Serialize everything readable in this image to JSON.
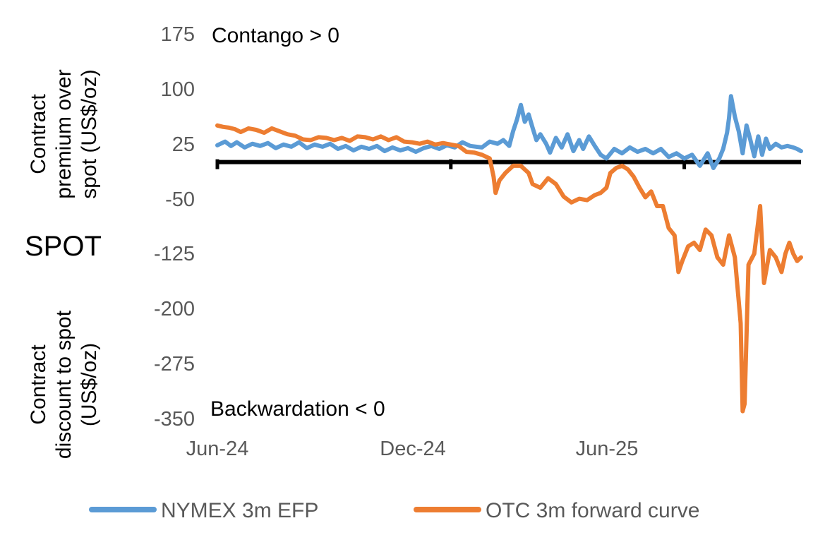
{
  "chart_data": {
    "type": "line",
    "title": "",
    "xlabel": "",
    "ylabel_upper": [
      "Contract",
      "premium over",
      "spot (US$/oz)"
    ],
    "ylabel_lower": [
      "Contract",
      "discount to spot",
      "(US$/oz)"
    ],
    "spot_label": "SPOT",
    "annotation_top": "Contango > 0",
    "annotation_bottom": "Backwardation < 0",
    "ylim": [
      -350,
      175
    ],
    "y_ticks": [
      175,
      100,
      25,
      -50,
      -125,
      -200,
      -275,
      -350
    ],
    "y_tick_labels": [
      "175",
      "100",
      "25",
      "-50",
      "-125",
      "-200",
      "-275",
      "-350"
    ],
    "x_range": [
      0,
      15
    ],
    "x_ticks": [
      0,
      6,
      12
    ],
    "x_tick_labels": [
      "Jun-24",
      "Dec-24",
      "Jun-25"
    ],
    "x_unit": "months since Jun-24",
    "grid": false,
    "legend_position": "bottom",
    "colors": {
      "nymex": "#5B9BD5",
      "otc": "#ED7D31",
      "axis": "#000000"
    },
    "series": [
      {
        "name": "NYMEX 3m EFP",
        "color": "#5B9BD5",
        "points": [
          [
            0,
            23
          ],
          [
            0.2,
            28
          ],
          [
            0.35,
            22
          ],
          [
            0.5,
            27
          ],
          [
            0.7,
            20
          ],
          [
            0.9,
            25
          ],
          [
            1.1,
            22
          ],
          [
            1.3,
            26
          ],
          [
            1.5,
            19
          ],
          [
            1.7,
            24
          ],
          [
            1.9,
            21
          ],
          [
            2.1,
            27
          ],
          [
            2.3,
            19
          ],
          [
            2.5,
            24
          ],
          [
            2.7,
            21
          ],
          [
            2.9,
            25
          ],
          [
            3.1,
            18
          ],
          [
            3.3,
            22
          ],
          [
            3.5,
            16
          ],
          [
            3.7,
            21
          ],
          [
            3.9,
            18
          ],
          [
            4.1,
            22
          ],
          [
            4.3,
            15
          ],
          [
            4.5,
            20
          ],
          [
            4.7,
            16
          ],
          [
            4.9,
            19
          ],
          [
            5.1,
            14
          ],
          [
            5.3,
            19
          ],
          [
            5.5,
            22
          ],
          [
            5.7,
            18
          ],
          [
            5.9,
            23
          ],
          [
            6.1,
            20
          ],
          [
            6.3,
            27
          ],
          [
            6.5,
            22
          ],
          [
            6.8,
            20
          ],
          [
            7.0,
            28
          ],
          [
            7.2,
            25
          ],
          [
            7.35,
            30
          ],
          [
            7.5,
            22
          ],
          [
            7.6,
            42
          ],
          [
            7.7,
            58
          ],
          [
            7.8,
            78
          ],
          [
            7.9,
            55
          ],
          [
            8.0,
            65
          ],
          [
            8.1,
            47
          ],
          [
            8.2,
            30
          ],
          [
            8.3,
            38
          ],
          [
            8.45,
            25
          ],
          [
            8.55,
            13
          ],
          [
            8.7,
            33
          ],
          [
            8.85,
            20
          ],
          [
            9.0,
            38
          ],
          [
            9.15,
            15
          ],
          [
            9.3,
            30
          ],
          [
            9.4,
            18
          ],
          [
            9.55,
            35
          ],
          [
            9.7,
            22
          ],
          [
            9.85,
            10
          ],
          [
            10.0,
            5
          ],
          [
            10.2,
            18
          ],
          [
            10.4,
            12
          ],
          [
            10.6,
            20
          ],
          [
            10.8,
            14
          ],
          [
            11.0,
            18
          ],
          [
            11.2,
            12
          ],
          [
            11.4,
            18
          ],
          [
            11.6,
            7
          ],
          [
            11.8,
            12
          ],
          [
            12.0,
            5
          ],
          [
            12.2,
            10
          ],
          [
            12.4,
            -5
          ],
          [
            12.6,
            12
          ],
          [
            12.75,
            -8
          ],
          [
            12.9,
            5
          ],
          [
            13.0,
            18
          ],
          [
            13.1,
            40
          ],
          [
            13.15,
            60
          ],
          [
            13.2,
            90
          ],
          [
            13.3,
            62
          ],
          [
            13.4,
            42
          ],
          [
            13.5,
            12
          ],
          [
            13.6,
            50
          ],
          [
            13.7,
            30
          ],
          [
            13.8,
            8
          ],
          [
            13.9,
            35
          ],
          [
            14.0,
            10
          ],
          [
            14.1,
            32
          ],
          [
            14.2,
            18
          ],
          [
            14.35,
            25
          ],
          [
            14.5,
            20
          ],
          [
            14.65,
            22
          ],
          [
            14.8,
            20
          ],
          [
            14.9,
            18
          ],
          [
            15.0,
            15
          ]
        ]
      },
      {
        "name": "OTC 3m forward curve",
        "color": "#ED7D31",
        "points": [
          [
            0,
            50
          ],
          [
            0.15,
            48
          ],
          [
            0.3,
            47
          ],
          [
            0.45,
            45
          ],
          [
            0.6,
            41
          ],
          [
            0.8,
            46
          ],
          [
            1.0,
            44
          ],
          [
            1.2,
            40
          ],
          [
            1.4,
            46
          ],
          [
            1.6,
            42
          ],
          [
            1.8,
            38
          ],
          [
            2.0,
            36
          ],
          [
            2.2,
            31
          ],
          [
            2.4,
            30
          ],
          [
            2.6,
            34
          ],
          [
            2.8,
            33
          ],
          [
            3.0,
            30
          ],
          [
            3.2,
            33
          ],
          [
            3.4,
            29
          ],
          [
            3.6,
            35
          ],
          [
            3.8,
            34
          ],
          [
            4.0,
            31
          ],
          [
            4.2,
            35
          ],
          [
            4.4,
            30
          ],
          [
            4.6,
            34
          ],
          [
            4.8,
            28
          ],
          [
            5.0,
            27
          ],
          [
            5.2,
            25
          ],
          [
            5.4,
            28
          ],
          [
            5.6,
            24
          ],
          [
            5.8,
            26
          ],
          [
            6.0,
            24
          ],
          [
            6.2,
            22
          ],
          [
            6.4,
            14
          ],
          [
            6.6,
            13
          ],
          [
            6.8,
            10
          ],
          [
            7.0,
            5
          ],
          [
            7.1,
            -20
          ],
          [
            7.15,
            -42
          ],
          [
            7.25,
            -25
          ],
          [
            7.4,
            -15
          ],
          [
            7.6,
            -5
          ],
          [
            7.8,
            -5
          ],
          [
            8.0,
            -15
          ],
          [
            8.1,
            -30
          ],
          [
            8.3,
            -35
          ],
          [
            8.5,
            -22
          ],
          [
            8.7,
            -30
          ],
          [
            8.9,
            -47
          ],
          [
            9.1,
            -55
          ],
          [
            9.3,
            -50
          ],
          [
            9.5,
            -52
          ],
          [
            9.7,
            -45
          ],
          [
            9.85,
            -42
          ],
          [
            10.0,
            -35
          ],
          [
            10.1,
            -15
          ],
          [
            10.25,
            -8
          ],
          [
            10.4,
            -5
          ],
          [
            10.55,
            -10
          ],
          [
            10.7,
            -20
          ],
          [
            10.85,
            -35
          ],
          [
            11.0,
            -48
          ],
          [
            11.15,
            -40
          ],
          [
            11.3,
            -60
          ],
          [
            11.45,
            -60
          ],
          [
            11.6,
            -90
          ],
          [
            11.75,
            -100
          ],
          [
            11.85,
            -150
          ],
          [
            11.95,
            -135
          ],
          [
            12.1,
            -115
          ],
          [
            12.25,
            -110
          ],
          [
            12.4,
            -120
          ],
          [
            12.55,
            -92
          ],
          [
            12.7,
            -100
          ],
          [
            12.85,
            -130
          ],
          [
            13.0,
            -140
          ],
          [
            13.15,
            -100
          ],
          [
            13.3,
            -130
          ],
          [
            13.45,
            -220
          ],
          [
            13.5,
            -340
          ],
          [
            13.55,
            -330
          ],
          [
            13.65,
            -140
          ],
          [
            13.8,
            -125
          ],
          [
            13.95,
            -60
          ],
          [
            14.05,
            -165
          ],
          [
            14.2,
            -120
          ],
          [
            14.35,
            -130
          ],
          [
            14.5,
            -150
          ],
          [
            14.6,
            -125
          ],
          [
            14.7,
            -110
          ],
          [
            14.8,
            -125
          ],
          [
            14.9,
            -135
          ],
          [
            15.0,
            -130
          ]
        ]
      }
    ]
  }
}
